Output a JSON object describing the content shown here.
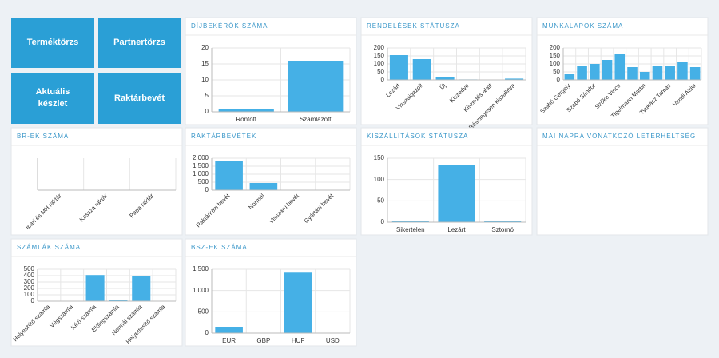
{
  "buttons": [
    "Terméktörzs",
    "Partnertörzs",
    "Aktuális készlet",
    "Raktárbevét"
  ],
  "chart_data": [
    {
      "type": "bar",
      "title": "DÍJBEKÉRŐK SZÁMA",
      "categories": [
        "Rontott",
        "Számlázott"
      ],
      "values": [
        1,
        16
      ],
      "color": "#45b0e6",
      "ylim": [
        0,
        20
      ],
      "yticks": [
        0,
        5,
        10,
        15,
        20
      ],
      "grid": true
    },
    {
      "type": "bar",
      "title": "RENDELÉSEK STÁTUSZA",
      "categories": [
        "Lezárt",
        "Visszaigazolt",
        "Új",
        "Kiszedve",
        "Kiszedés alatt",
        "Részlegesen kiszállítva"
      ],
      "values": [
        155,
        130,
        20,
        3,
        0,
        8
      ],
      "color": "#45b0e6",
      "ylim": [
        0,
        200
      ],
      "yticks": [
        0,
        50,
        100,
        150,
        200
      ],
      "grid": true
    },
    {
      "type": "bar",
      "title": "MUNKALAPOK SZÁMA",
      "categories": [
        "Szabó Gergely",
        null,
        "Szabó Sándor",
        null,
        "Szőke Vince",
        null,
        "Tigelmann Martin",
        null,
        "Tyukász Tamás",
        null,
        "Vendi Attila"
      ],
      "values": [
        40,
        90,
        100,
        125,
        165,
        80,
        50,
        85,
        90,
        110,
        80
      ],
      "color": "#45b0e6",
      "ylim": [
        0,
        200
      ],
      "yticks": [
        0,
        50,
        100,
        150,
        200
      ],
      "grid": true
    },
    {
      "type": "bar",
      "title": "BR-EK SZÁMA",
      "categories": [
        "Ipari és MH raktár",
        "Kassza raktár",
        "Pápa raktár"
      ],
      "values": [
        0,
        0,
        0
      ],
      "color": "#45b0e6",
      "grid": true
    },
    {
      "type": "bar",
      "title": "RAKTÁRBEVÉTEK",
      "categories": [
        "Raktárközi bevét",
        "Normál",
        "Visszáru bevét",
        "Gyártási bevét"
      ],
      "values": [
        1850,
        450,
        0,
        0
      ],
      "color": "#45b0e6",
      "ylim": [
        0,
        2000
      ],
      "yticks": [
        0,
        500,
        {
          "value": 1000,
          "label": "1 000"
        },
        {
          "value": 1500,
          "label": "1 500"
        },
        {
          "value": 2000,
          "label": "2 000"
        }
      ],
      "grid": true
    },
    {
      "type": "bar",
      "title": "KISZÁLLÍTÁSOK STÁTUSZA",
      "categories": [
        "Sikertelen",
        "Lezárt",
        "Sztornó"
      ],
      "values": [
        2,
        135,
        2
      ],
      "color": "#45b0e6",
      "ylim": [
        0,
        150
      ],
      "yticks": [
        0,
        50,
        100,
        150
      ],
      "grid": true
    },
    {
      "type": "empty",
      "title": "MAI NAPRA VONATKOZÓ LETERHELTSÉG"
    },
    {
      "type": "bar",
      "title": "SZÁMLÁK SZÁMA",
      "categories": [
        "Helyesbítő számla",
        "Végszámla",
        "Kézi számla",
        "Előlegszámla",
        "Normál számla",
        "Helyettesítő számla"
      ],
      "values": [
        5,
        5,
        410,
        25,
        395,
        5
      ],
      "color": "#45b0e6",
      "ylim": [
        0,
        500
      ],
      "yticks": [
        0,
        100,
        200,
        300,
        400,
        500
      ],
      "grid": true
    },
    {
      "type": "bar",
      "title": "BSZ-EK SZÁMA",
      "categories": [
        "EUR",
        "GBP",
        "HUF",
        "USD"
      ],
      "values": [
        150,
        0,
        1420,
        0
      ],
      "color": "#45b0e6",
      "ylim": [
        0,
        1500
      ],
      "yticks": [
        0,
        500,
        {
          "value": 1000,
          "label": "1 000"
        },
        {
          "value": 1500,
          "label": "1 500"
        }
      ],
      "grid": true
    }
  ]
}
